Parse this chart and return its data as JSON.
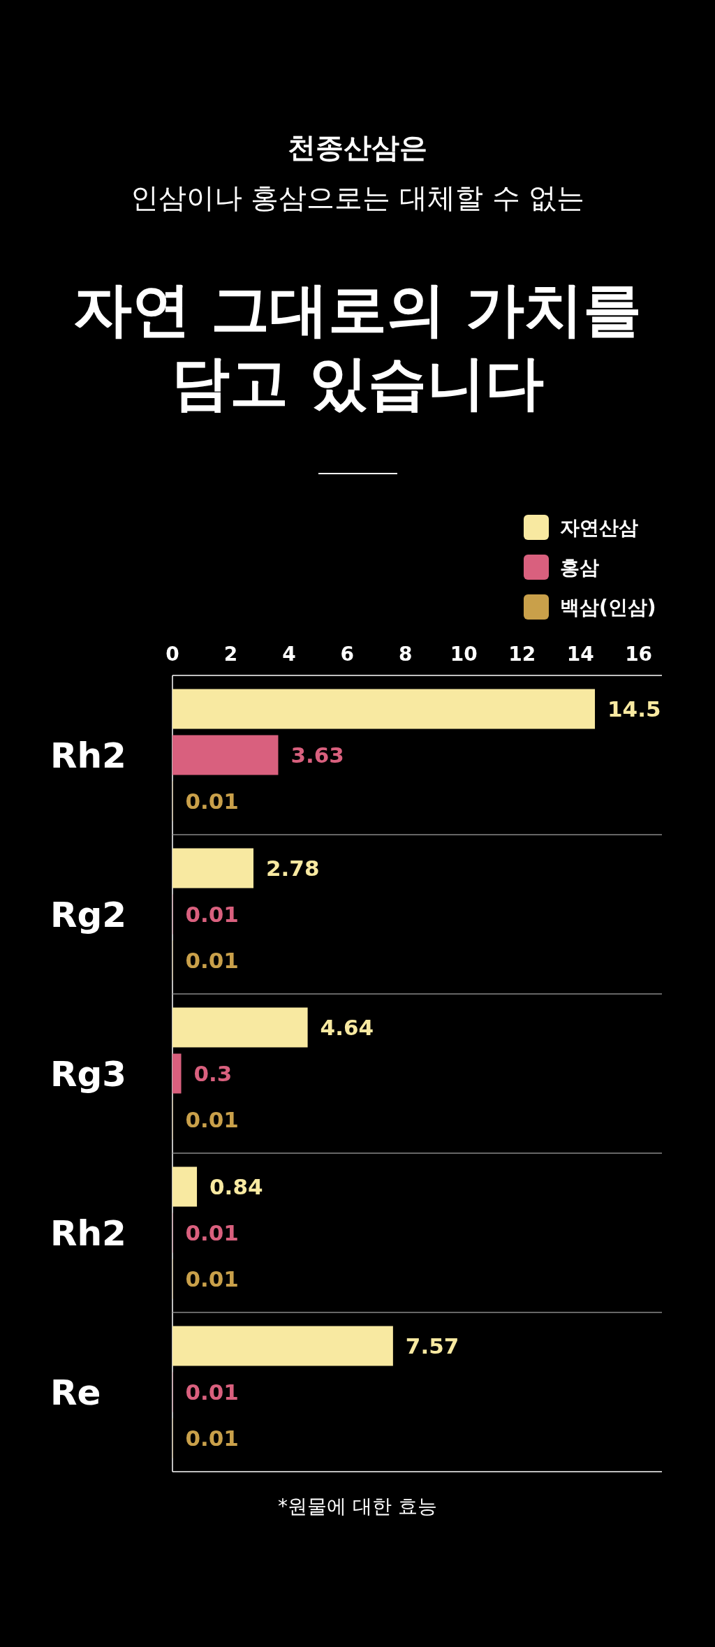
{
  "chart_data": {
    "type": "bar",
    "orientation": "horizontal",
    "subtitle": "천종산삼은\n인삼이나 홍삼으로는 대체할 수 없는",
    "title": "자연 그대로의 가치를\n담고 있습니다",
    "categories": [
      "Rh2",
      "Rg2",
      "Rg3",
      "Rh2",
      "Re"
    ],
    "series": [
      {
        "name": "자연산삼",
        "color": "#f8e9a1",
        "values": [
          14.5,
          2.78,
          4.64,
          0.84,
          7.57
        ]
      },
      {
        "name": "홍삼",
        "color": "#d9607e",
        "values": [
          3.63,
          0.01,
          0.3,
          0.01,
          0.01
        ]
      },
      {
        "name": "백삼(인삼)",
        "color": "#c9a04a",
        "values": [
          0.01,
          0.01,
          0.01,
          0.01,
          0.01
        ]
      }
    ],
    "xlim": [
      0,
      16.8
    ],
    "xticks": [
      0,
      2,
      4,
      6,
      8,
      10,
      12,
      14,
      16
    ],
    "data_labels": true,
    "legend": "top right",
    "grid": false,
    "annotations": [
      "*원물에 대한 효능"
    ]
  }
}
